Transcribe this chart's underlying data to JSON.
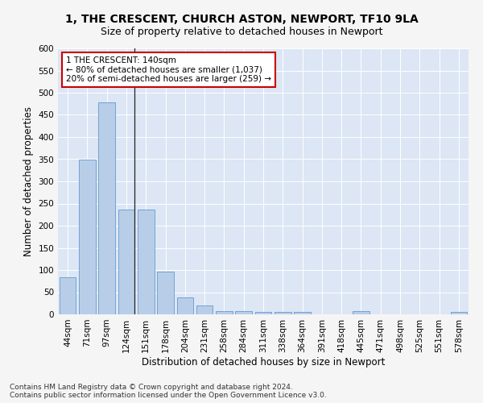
{
  "title_line1": "1, THE CRESCENT, CHURCH ASTON, NEWPORT, TF10 9LA",
  "title_line2": "Size of property relative to detached houses in Newport",
  "xlabel": "Distribution of detached houses by size in Newport",
  "ylabel": "Number of detached properties",
  "categories": [
    "44sqm",
    "71sqm",
    "97sqm",
    "124sqm",
    "151sqm",
    "178sqm",
    "204sqm",
    "231sqm",
    "258sqm",
    "284sqm",
    "311sqm",
    "338sqm",
    "364sqm",
    "391sqm",
    "418sqm",
    "445sqm",
    "471sqm",
    "498sqm",
    "525sqm",
    "551sqm",
    "578sqm"
  ],
  "values": [
    83,
    349,
    478,
    236,
    236,
    97,
    38,
    20,
    7,
    7,
    5,
    5,
    5,
    0,
    0,
    8,
    0,
    0,
    0,
    0,
    5
  ],
  "bar_color": "#b8cee8",
  "bar_edge_color": "#6699cc",
  "annotation_text_line1": "1 THE CRESCENT: 140sqm",
  "annotation_text_line2": "← 80% of detached houses are smaller (1,037)",
  "annotation_text_line3": "20% of semi-detached houses are larger (259) →",
  "annotation_box_facecolor": "#ffffff",
  "annotation_box_edgecolor": "#cc0000",
  "vertical_line_x": 3.43,
  "ylim": [
    0,
    600
  ],
  "yticks": [
    0,
    50,
    100,
    150,
    200,
    250,
    300,
    350,
    400,
    450,
    500,
    550,
    600
  ],
  "plot_bg_color": "#dce6f5",
  "fig_bg_color": "#f5f5f5",
  "title_fontsize": 10,
  "subtitle_fontsize": 9,
  "axis_label_fontsize": 8.5,
  "tick_fontsize": 7.5,
  "annotation_fontsize": 7.5,
  "footnote_fontsize": 6.5,
  "footnote": "Contains HM Land Registry data © Crown copyright and database right 2024.\nContains public sector information licensed under the Open Government Licence v3.0."
}
